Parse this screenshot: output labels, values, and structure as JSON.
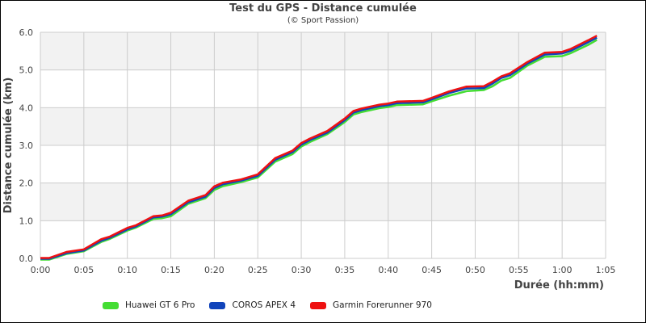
{
  "chart_data": {
    "type": "line",
    "title": "Test du GPS - Distance cumulée",
    "subtitle": "(© Sport Passion)",
    "xlabel": "Durée (hh:mm)",
    "ylabel": "Distance cumulée (km)",
    "xlim": [
      0,
      65
    ],
    "ylim": [
      0,
      6
    ],
    "x_tick_labels": [
      "0:00",
      "0:05",
      "0:10",
      "0:15",
      "0:20",
      "0:25",
      "0:30",
      "0:35",
      "0:40",
      "0:45",
      "0:50",
      "0:55",
      "1:00",
      "1:05"
    ],
    "y_tick_labels": [
      "0.0",
      "1.0",
      "2.0",
      "3.0",
      "4.0",
      "5.0",
      "6.0"
    ],
    "grid": true,
    "legend_position": "bottom",
    "x_minutes": [
      0,
      1,
      3,
      5,
      7,
      8,
      10,
      11,
      13,
      14,
      15,
      17,
      19,
      20,
      21,
      23,
      25,
      27,
      29,
      30,
      31,
      33,
      35,
      36,
      37,
      39,
      40,
      41,
      44,
      45,
      47,
      49,
      51,
      52,
      53,
      54,
      56,
      58,
      60,
      61,
      63,
      64
    ],
    "series": [
      {
        "name": "Huawei GT 6 Pro",
        "color": "#44dd33",
        "values": [
          0.0,
          0.0,
          0.15,
          0.22,
          0.47,
          0.55,
          0.77,
          0.85,
          1.08,
          1.1,
          1.15,
          1.48,
          1.63,
          1.85,
          1.95,
          2.05,
          2.18,
          2.6,
          2.8,
          3.0,
          3.12,
          3.33,
          3.65,
          3.85,
          3.92,
          4.02,
          4.05,
          4.1,
          4.12,
          4.2,
          4.35,
          4.47,
          4.5,
          4.6,
          4.75,
          4.82,
          5.15,
          5.38,
          5.4,
          5.48,
          5.7,
          5.83
        ]
      },
      {
        "name": "COROS APEX 4",
        "color": "#1144bb",
        "values": [
          0.0,
          0.0,
          0.15,
          0.22,
          0.48,
          0.56,
          0.78,
          0.86,
          1.1,
          1.12,
          1.18,
          1.5,
          1.65,
          1.88,
          1.98,
          2.07,
          2.2,
          2.63,
          2.83,
          3.03,
          3.15,
          3.35,
          3.68,
          3.88,
          3.95,
          4.05,
          4.08,
          4.13,
          4.15,
          4.23,
          4.4,
          4.52,
          4.53,
          4.65,
          4.8,
          4.87,
          5.18,
          5.42,
          5.45,
          5.52,
          5.75,
          5.87
        ]
      },
      {
        "name": "Garmin Forerunner 970",
        "color": "#ee1111",
        "values": [
          0.0,
          0.0,
          0.16,
          0.23,
          0.5,
          0.57,
          0.8,
          0.87,
          1.11,
          1.13,
          1.2,
          1.52,
          1.67,
          1.9,
          2.0,
          2.08,
          2.22,
          2.65,
          2.85,
          3.05,
          3.17,
          3.37,
          3.7,
          3.9,
          3.97,
          4.07,
          4.1,
          4.15,
          4.17,
          4.25,
          4.42,
          4.55,
          4.56,
          4.68,
          4.82,
          4.9,
          5.2,
          5.45,
          5.47,
          5.55,
          5.78,
          5.9
        ]
      }
    ]
  },
  "colors": {
    "plot_band": "#f2f2f2",
    "grid": "#cccccc",
    "frame": "#000000"
  }
}
